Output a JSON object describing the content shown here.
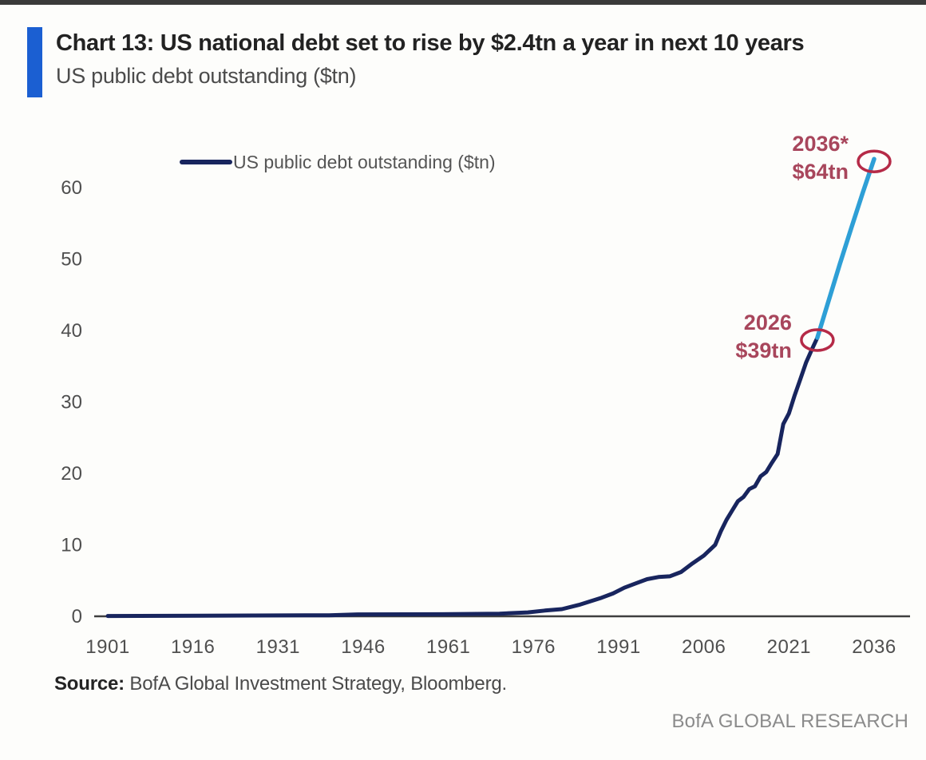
{
  "page": {
    "background": "#fdfdfb",
    "top_strip_color": "#3a3a3a"
  },
  "header": {
    "accent_color": "#1b5fd2",
    "title": "Chart 13: US national debt set to rise by $2.4tn a year in next 10 years",
    "subtitle": "US public debt outstanding ($tn)"
  },
  "chart_data": {
    "type": "line",
    "title": "US public debt outstanding ($tn)",
    "xlabel": "",
    "ylabel": "",
    "grid": false,
    "xlim": [
      1901,
      2042
    ],
    "ylim": [
      0,
      66
    ],
    "x_ticks": [
      1901,
      1916,
      1931,
      1946,
      1961,
      1976,
      1991,
      2006,
      2021,
      2036
    ],
    "y_ticks": [
      0,
      10,
      20,
      30,
      40,
      50,
      60
    ],
    "legend": {
      "position": "top-left",
      "entries": [
        {
          "label": "US public debt outstanding ($tn)",
          "color": "#18255e"
        }
      ]
    },
    "axis_color": "#3f3f3f",
    "tick_label_color": "#4f4f4f",
    "series": [
      {
        "name": "historical",
        "color": "#18255e",
        "width": 5,
        "points": [
          [
            1901,
            0.05
          ],
          [
            1940,
            0.15
          ],
          [
            1945,
            0.27
          ],
          [
            1960,
            0.29
          ],
          [
            1970,
            0.37
          ],
          [
            1975,
            0.55
          ],
          [
            1978,
            0.8
          ],
          [
            1981,
            1.0
          ],
          [
            1984,
            1.6
          ],
          [
            1986,
            2.1
          ],
          [
            1988,
            2.6
          ],
          [
            1990,
            3.2
          ],
          [
            1992,
            4.0
          ],
          [
            1994,
            4.6
          ],
          [
            1996,
            5.2
          ],
          [
            1998,
            5.5
          ],
          [
            2000,
            5.6
          ],
          [
            2002,
            6.2
          ],
          [
            2004,
            7.4
          ],
          [
            2006,
            8.5
          ],
          [
            2008,
            10.0
          ],
          [
            2009,
            11.9
          ],
          [
            2010,
            13.5
          ],
          [
            2011,
            14.8
          ],
          [
            2012,
            16.1
          ],
          [
            2013,
            16.7
          ],
          [
            2014,
            17.8
          ],
          [
            2015,
            18.2
          ],
          [
            2016,
            19.6
          ],
          [
            2017,
            20.2
          ],
          [
            2018,
            21.5
          ],
          [
            2019,
            22.7
          ],
          [
            2020,
            26.9
          ],
          [
            2021,
            28.4
          ],
          [
            2022,
            30.9
          ],
          [
            2023,
            33.2
          ],
          [
            2024,
            35.5
          ],
          [
            2025,
            37.3
          ],
          [
            2026,
            39
          ]
        ]
      },
      {
        "name": "projection",
        "color": "#2e9fd6",
        "width": 5.5,
        "points": [
          [
            2026,
            39
          ],
          [
            2028,
            44.2
          ],
          [
            2030,
            49.4
          ],
          [
            2032,
            54.4
          ],
          [
            2034,
            59.3
          ],
          [
            2036,
            64
          ]
        ]
      }
    ],
    "annotations": [
      {
        "id": "2026",
        "label_lines": [
          "2026",
          "$39tn"
        ],
        "year": 2026,
        "value": 39,
        "text_color": "#a8465c",
        "circle_color": "#b52a47"
      },
      {
        "id": "2036",
        "label_lines": [
          "2036*",
          "$64tn"
        ],
        "year": 2036,
        "value": 64,
        "text_color": "#a8465c",
        "circle_color": "#b52a47"
      }
    ]
  },
  "footer": {
    "source_label": "Source:",
    "source_text": " BofA Global Investment Strategy, Bloomberg.",
    "brand": "BofA GLOBAL RESEARCH"
  }
}
